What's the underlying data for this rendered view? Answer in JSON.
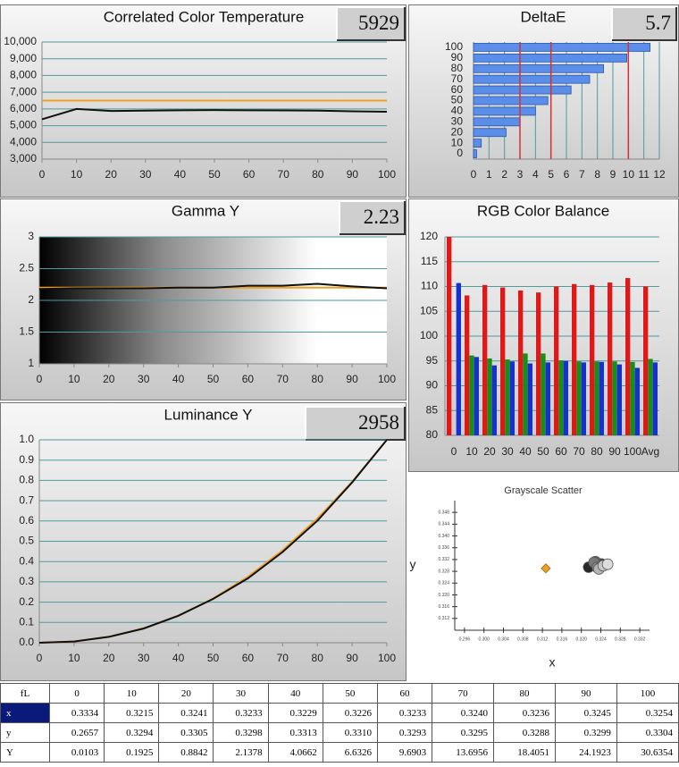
{
  "chart_data": [
    {
      "type": "line",
      "title": "Correlated Color Temperature",
      "readout": "5929",
      "x": [
        0,
        10,
        20,
        30,
        40,
        50,
        60,
        70,
        80,
        90,
        100
      ],
      "series": [
        {
          "color": "#f0a020",
          "values": [
            6500,
            6500,
            6500,
            6500,
            6500,
            6500,
            6500,
            6500,
            6500,
            6500,
            6500
          ]
        },
        {
          "color": "#111111",
          "values": [
            5380,
            6000,
            5880,
            5900,
            5920,
            5930,
            5920,
            5910,
            5900,
            5860,
            5830
          ]
        }
      ],
      "xlim": [
        0,
        100
      ],
      "xticks": [
        0,
        10,
        20,
        30,
        40,
        50,
        60,
        70,
        80,
        90,
        100
      ],
      "ylim": [
        3000,
        10000
      ],
      "yticks": [
        {
          "value": 3000,
          "label": "3,000"
        },
        {
          "value": 4000,
          "label": "4,000"
        },
        {
          "value": 5000,
          "label": "5,000"
        },
        {
          "value": 6000,
          "label": "6,000"
        },
        {
          "value": 7000,
          "label": "7,000"
        },
        {
          "value": 8000,
          "label": "8,000"
        },
        {
          "value": 9000,
          "label": "9,000"
        },
        {
          "value": 10000,
          "label": "10,000"
        }
      ],
      "grid": true
    },
    {
      "type": "hbar",
      "title": "DeltaE",
      "readout": "5.7",
      "categories": [
        "0",
        "10",
        "20",
        "30",
        "40",
        "50",
        "60",
        "70",
        "80",
        "90",
        "100"
      ],
      "values": [
        0.2,
        0.5,
        2.1,
        3.0,
        4.0,
        4.8,
        6.3,
        7.5,
        8.4,
        9.9,
        11.4
      ],
      "color": "#5b8ee8",
      "xlim": [
        0,
        12
      ],
      "xticks": [
        0,
        1,
        2,
        3,
        4,
        5,
        6,
        7,
        8,
        9,
        10,
        11,
        12
      ],
      "reference_lines": [
        3,
        5,
        10
      ],
      "reference_color": "#d83030",
      "grid": true
    },
    {
      "type": "line",
      "title": "Gamma Y",
      "readout": "2.23",
      "background": "gradient",
      "x": [
        0,
        10,
        20,
        30,
        40,
        50,
        60,
        70,
        80,
        90,
        100
      ],
      "series": [
        {
          "color": "#f0a020",
          "values": [
            2.2,
            2.2,
            2.2,
            2.2,
            2.2,
            2.2,
            2.2,
            2.2,
            2.2,
            2.2,
            2.2
          ]
        },
        {
          "color": "#111111",
          "values": [
            2.18,
            2.19,
            2.19,
            2.19,
            2.2,
            2.2,
            2.23,
            2.23,
            2.26,
            2.22,
            2.19
          ]
        }
      ],
      "xlim": [
        0,
        100
      ],
      "xticks": [
        0,
        10,
        20,
        30,
        40,
        50,
        60,
        70,
        80,
        90,
        100
      ],
      "ylim": [
        1,
        3
      ],
      "yticks": [
        1,
        1.5,
        2,
        2.5,
        3
      ],
      "grid": true
    },
    {
      "type": "bar",
      "title": "RGB Color Balance",
      "categories": [
        "0",
        "10",
        "20",
        "30",
        "40",
        "50",
        "60",
        "70",
        "80",
        "90",
        "100",
        "Avg"
      ],
      "series": [
        {
          "color": "#e01818",
          "values": [
            120,
            108.2,
            110.3,
            109.8,
            109.2,
            108.8,
            110,
            110.5,
            110.3,
            110.8,
            111.7,
            110
          ]
        },
        {
          "color": "#189018",
          "values": [
            null,
            96.1,
            95.5,
            95.3,
            96.5,
            96.5,
            95.1,
            94.9,
            94.9,
            94.9,
            94.8,
            95.4
          ]
        },
        {
          "color": "#1830d0",
          "values": [
            110.7,
            95.8,
            94.1,
            94.9,
            94.5,
            94.7,
            95,
            94.7,
            94.8,
            94.3,
            93.6,
            94.7
          ]
        }
      ],
      "ylim": [
        80,
        120
      ],
      "yticks": [
        80,
        85,
        90,
        95,
        100,
        105,
        110,
        115,
        120
      ],
      "grid": true
    },
    {
      "type": "line",
      "title": "Luminance Y",
      "readout": "2958",
      "x": [
        0,
        10,
        20,
        30,
        40,
        50,
        60,
        70,
        80,
        90,
        100
      ],
      "series": [
        {
          "color": "#f0a020",
          "values": [
            0,
            0.006,
            0.029,
            0.071,
            0.133,
            0.218,
            0.325,
            0.456,
            0.612,
            0.793,
            1
          ]
        },
        {
          "color": "#111111",
          "values": [
            0,
            0.006,
            0.029,
            0.07,
            0.133,
            0.216,
            0.317,
            0.447,
            0.601,
            0.79,
            1
          ]
        }
      ],
      "xlim": [
        0,
        100
      ],
      "xticks": [
        0,
        10,
        20,
        30,
        40,
        50,
        60,
        70,
        80,
        90,
        100
      ],
      "ylim": [
        0,
        1
      ],
      "yticks": [
        {
          "value": 0,
          "label": "0.0"
        },
        0.1,
        0.2,
        0.3,
        0.4,
        0.5,
        0.6,
        0.7,
        0.8,
        0.9,
        {
          "value": 1,
          "label": "1.0"
        }
      ],
      "grid": true
    },
    {
      "type": "scatter",
      "title": "Grayscale Scatter",
      "xlabel": "x",
      "ylabel": "y",
      "series": [
        {
          "color": "#f0a020",
          "marker": "diamond",
          "x": [
            0.3127
          ],
          "y": [
            0.329
          ]
        },
        {
          "color": "#999999",
          "marker": "circle",
          "x": [
            0.3215,
            0.3241,
            0.3233,
            0.3229,
            0.3226,
            0.3233,
            0.324,
            0.3236,
            0.3245,
            0.3254
          ],
          "y": [
            0.3294,
            0.3305,
            0.3298,
            0.3313,
            0.331,
            0.3293,
            0.3295,
            0.3288,
            0.3299,
            0.3304
          ]
        }
      ],
      "xlim": [
        0.294,
        0.334
      ],
      "xticks": [
        0.296,
        {
          "value": 0.3,
          "label": "0.300"
        },
        0.304,
        0.308,
        0.312,
        0.316,
        {
          "value": 0.32,
          "label": "0.320"
        },
        0.324,
        0.328,
        0.332
      ],
      "ylim": [
        0.308,
        0.352
      ],
      "yticks": [
        0.312,
        0.316,
        {
          "value": 0.32,
          "label": "0.320"
        },
        0.324,
        0.328,
        0.332,
        0.336,
        {
          "value": 0.34,
          "label": "0.340"
        },
        0.344,
        0.348
      ]
    }
  ],
  "table": {
    "header": [
      "fL",
      "0",
      "10",
      "20",
      "30",
      "40",
      "50",
      "60",
      "70",
      "80",
      "90",
      "100"
    ],
    "rows": [
      [
        "x",
        "0.3334",
        "0.3215",
        "0.3241",
        "0.3233",
        "0.3229",
        "0.3226",
        "0.3233",
        "0.3240",
        "0.3236",
        "0.3245",
        "0.3254"
      ],
      [
        "y",
        "0.2657",
        "0.3294",
        "0.3305",
        "0.3298",
        "0.3313",
        "0.3310",
        "0.3293",
        "0.3295",
        "0.3288",
        "0.3299",
        "0.3304"
      ],
      [
        "Y",
        "0.0103",
        "0.1925",
        "0.8842",
        "2.1378",
        "4.0662",
        "6.6326",
        "9.6903",
        "13.6956",
        "18.4051",
        "24.1923",
        "30.6354"
      ]
    ]
  }
}
